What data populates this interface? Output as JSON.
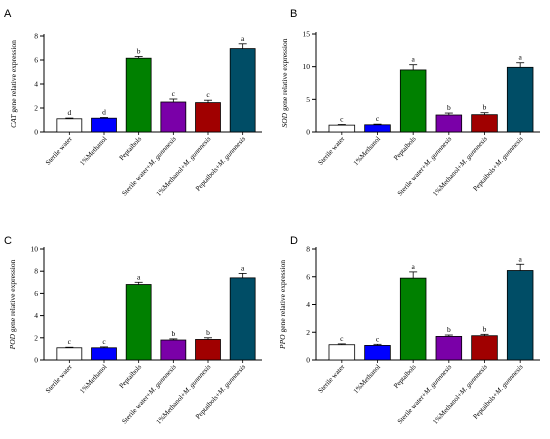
{
  "chart_data": [
    {
      "panel": "A",
      "type": "bar",
      "ylabel_italic": "CAT",
      "ylabel_rest": " gene relative expression",
      "ylim": [
        0,
        8
      ],
      "yticks": [
        0,
        2,
        4,
        6,
        8
      ],
      "categories": [
        "Sterile water",
        "1%Methanol",
        "Peptaibols",
        "Sterile water+M. gunnnesis",
        "1%Methanol+M. gunnnesis",
        "Peptaibols+M. gunnnesis"
      ],
      "values": [
        1.1,
        1.15,
        6.15,
        2.5,
        2.45,
        6.95
      ],
      "errors": [
        0.06,
        0.06,
        0.15,
        0.25,
        0.2,
        0.4
      ],
      "significance": [
        "d",
        "d",
        "b",
        "c",
        "c",
        "a"
      ]
    },
    {
      "panel": "B",
      "type": "bar",
      "ylabel_italic": "SOD",
      "ylabel_rest": " gene relative expression",
      "ylim": [
        0,
        15
      ],
      "yticks": [
        0,
        5,
        10,
        15
      ],
      "categories": [
        "Sterile water",
        "1%Methanol",
        "Peptaibols",
        "Sterile water+M. gunnnesis",
        "1%Methanol+M. gunnnesis",
        "Peptaibols+M. gunnnesis"
      ],
      "values": [
        1.05,
        1.1,
        9.5,
        2.6,
        2.65,
        9.9
      ],
      "errors": [
        0.1,
        0.1,
        0.8,
        0.3,
        0.3,
        0.7
      ],
      "significance": [
        "c",
        "c",
        "a",
        "b",
        "b",
        "a"
      ]
    },
    {
      "panel": "C",
      "type": "bar",
      "ylabel_italic": "POD",
      "ylabel_rest": " gene relative expression",
      "ylim": [
        0,
        10
      ],
      "yticks": [
        0,
        2,
        4,
        6,
        8,
        10
      ],
      "categories": [
        "Sterile water",
        "1%Methanol",
        "Peptaibols",
        "Sterile water+M. gunnnesis",
        "1%Methanol+M. gunnnesis",
        "Peptaibols+M. gunnnesis"
      ],
      "values": [
        1.1,
        1.1,
        6.8,
        1.8,
        1.85,
        7.4
      ],
      "errors": [
        0.05,
        0.08,
        0.2,
        0.1,
        0.15,
        0.4
      ],
      "significance": [
        "c",
        "c",
        "a",
        "b",
        "b",
        "a"
      ]
    },
    {
      "panel": "D",
      "type": "bar",
      "ylabel_italic": "PPO",
      "ylabel_rest": " gene relative expression",
      "ylim": [
        0,
        8
      ],
      "yticks": [
        0,
        2,
        4,
        6,
        8
      ],
      "categories": [
        "Sterile water",
        "1%Methanol",
        "Peptaibols",
        "Sterile water+M. gunnnesis",
        "1%Methanol+M. gunnnesis",
        "Peptaibols+M. gunnnesis"
      ],
      "values": [
        1.1,
        1.05,
        5.9,
        1.7,
        1.75,
        6.45
      ],
      "errors": [
        0.06,
        0.08,
        0.45,
        0.1,
        0.1,
        0.45
      ],
      "significance": [
        "c",
        "c",
        "a",
        "b",
        "b",
        "a"
      ]
    }
  ],
  "colors": {
    "bars": [
      "#ffffff",
      "#0000ff",
      "#008000",
      "#7a00a8",
      "#a00000",
      "#004d66"
    ],
    "axis": "#000000"
  }
}
